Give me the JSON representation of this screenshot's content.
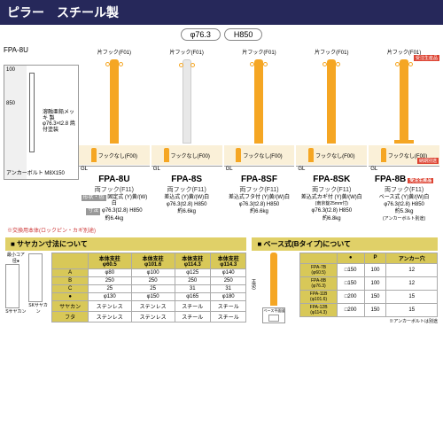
{
  "header": {
    "title": "ピラー　スチール製"
  },
  "top_specs": {
    "diameter": "φ76.3",
    "height": "H850"
  },
  "diagram": {
    "model_label": "FPA-8U",
    "anchor_text": "アンカーボルト\nM8X150",
    "plate_text": "溶融亜鉛メッキ\n製\nφ76.3×t2.8\n焼付塗装"
  },
  "products": [
    {
      "model": "FPA-8U",
      "pillar_color": "#f5a623",
      "h": 95,
      "hook_top": "片フック(F01)",
      "thumb2": "フックなし(F00)",
      "sub": "両フック(F11)",
      "form": "固定式 (Y)黄/(W)白",
      "spec": "φ76.3(t2.8) H850",
      "weight": "約6.4kg",
      "has_base": false,
      "badge1": "",
      "badge2": ""
    },
    {
      "model": "FPA-8S",
      "pillar_color": "#e8e8e8",
      "h": 95,
      "hook_top": "片フック(F01)",
      "thumb2": "フックなし(F00)",
      "sub": "両フック(F11)",
      "form": "差込式 (Y)黄/(W)白",
      "spec": "φ76.3(t2.8) H850",
      "weight": "約6.6kg",
      "has_base": false,
      "badge1": "",
      "badge2": ""
    },
    {
      "model": "FPA-8SF",
      "pillar_color": "#f5a623",
      "h": 95,
      "hook_top": "片フック(F01)",
      "thumb2": "フックなし(F00)",
      "sub": "両フック(F11)",
      "form": "差込式フタ付 (Y)黄/(W)白",
      "spec": "φ76.3(t2.8) H850",
      "weight": "約6.6kg",
      "has_base": false,
      "badge1": "",
      "badge2": ""
    },
    {
      "model": "FPA-8SK",
      "pillar_color": "#f5a623",
      "h": 95,
      "hook_top": "片フック(F01)",
      "thumb2": "フックなし(F00)",
      "sub": "両フック(F11)",
      "form": "差込式カギ付 (Y)黄/(W)白",
      "spec": "φ76.3(t2.8) H850",
      "weight": "約6.8kg",
      "has_base": false,
      "badge1": "",
      "badge2": "",
      "extra": "(南京錠25mm付)"
    },
    {
      "model": "FPA-8B",
      "pillar_color": "#f5a623",
      "h": 95,
      "hook_top": "片フック(F01)",
      "thumb2": "フックなし(F00)",
      "sub": "両フック(F11)",
      "form": "ベース式 (Y)黄/(W)白",
      "spec": "φ76.3(t2.8) H850",
      "weight": "約5.3kg",
      "has_base": true,
      "badge1": "受注生産品",
      "badge2": "納期別途",
      "model_badge": "受注生産品",
      "anchor_note": "(アンカーボルト別途)"
    }
  ],
  "note": "※交換用本体(ロックピン・カギ別途)",
  "form_label": "形状・色",
  "size_label": "寸法",
  "sayakan": {
    "title": "■ サヤカン寸法について",
    "core_label": "最小コア径●",
    "s_label": "Sサヤカン",
    "sk_label": "SKサヤカン",
    "headers": [
      "",
      "本体支柱\nφ60.5",
      "本体支柱\nφ101.6",
      "本体支柱\nφ114.3",
      "本体支柱\nφ114.3"
    ],
    "rows": [
      [
        "A",
        "φ80",
        "φ100",
        "φ125",
        "φ140"
      ],
      [
        "B",
        "250",
        "250",
        "250",
        "250"
      ],
      [
        "C",
        "25",
        "25",
        "31",
        "31"
      ],
      [
        "●",
        "φ130",
        "φ150",
        "φ165",
        "φ180"
      ],
      [
        "サヤカン",
        "ステンレス",
        "ステンレス",
        "スチール",
        "スチール"
      ],
      [
        "フタ",
        "ステンレス",
        "ステンレス",
        "スチール",
        "スチール"
      ]
    ]
  },
  "base": {
    "title": "■ ベース式(Bタイプ)について",
    "h_label": "H850",
    "plate_label": "ベース平面図",
    "headers": [
      "",
      "●",
      "P",
      "アンカー穴"
    ],
    "rows": [
      [
        "FPA-7B\n(φ60.5)",
        "□150",
        "100",
        "12"
      ],
      [
        "FPA-8B\n(φ76.3)",
        "□150",
        "100",
        "12"
      ],
      [
        "FPA-11B\n(φ101.6)",
        "□200",
        "150",
        "15"
      ],
      [
        "FPA-12B\n(φ114.3)",
        "□200",
        "150",
        "15"
      ]
    ],
    "note": "※アンカーボルトは別途"
  },
  "colors": {
    "yellow": "#f5a623",
    "navy": "#26285a",
    "gold": "#e0d068",
    "red": "#d43"
  }
}
